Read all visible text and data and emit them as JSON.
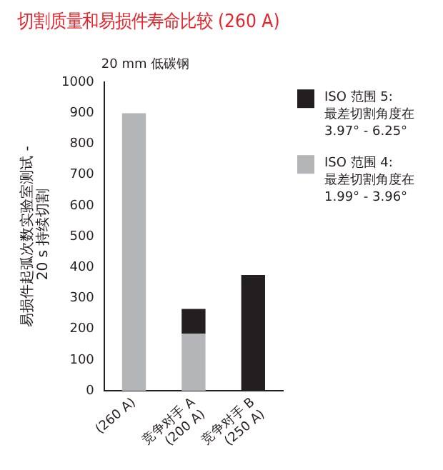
{
  "chart_data": {
    "type": "bar",
    "title": "切割质量和易损件寿命比较 (260 A)",
    "subtitle": "20 mm 低碳钢",
    "ylabel": "易损件起弧次数实验室测试 - 20 s 持续切割",
    "categories": [
      "(260 A)",
      "竞争对手 A\n(200 A)",
      "竞争对手 B\n(250 A)"
    ],
    "series": [
      {
        "name": "ISO 范围 4:\n最差切割角度在\n1.99° - 3.96°",
        "color": "#b3b5b7",
        "values": [
          900,
          185,
          null
        ]
      },
      {
        "name": "ISO 范围 5:\n最差切割角度在\n3.97° - 6.25°",
        "color": "#231f20",
        "values": [
          null,
          80,
          375
        ]
      }
    ],
    "stacked": true,
    "ylim": [
      0,
      1000
    ],
    "yticks": [
      0,
      100,
      200,
      300,
      400,
      500,
      600,
      700,
      800,
      900,
      1000
    ],
    "grid": false,
    "legend": "right"
  }
}
